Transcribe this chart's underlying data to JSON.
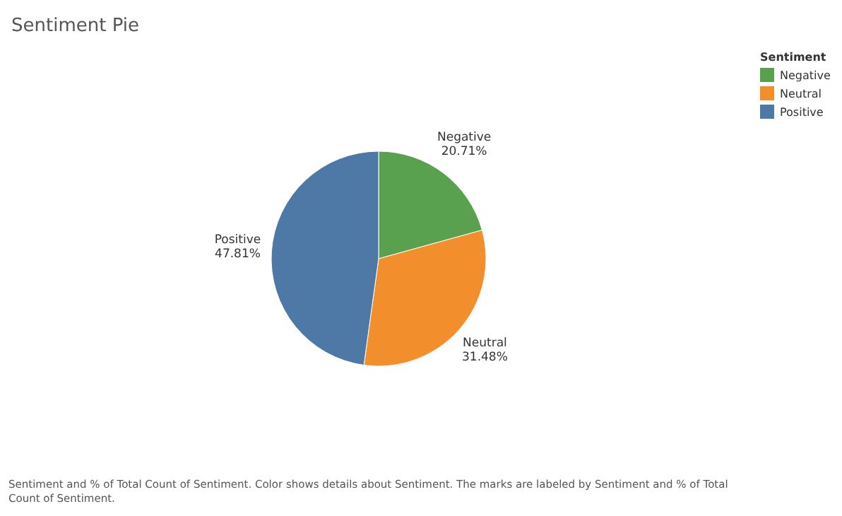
{
  "chart_data": {
    "type": "pie",
    "title": "Sentiment Pie",
    "legend_title": "Sentiment",
    "legend": "top right",
    "categories": [
      "Negative",
      "Neutral",
      "Positive"
    ],
    "values": [
      20.71,
      31.48,
      47.81
    ],
    "value_labels": [
      "20.71%",
      "31.48%",
      "47.81%"
    ],
    "colors": [
      "#59a14f",
      "#f28e2b",
      "#4e79a7"
    ],
    "annotations": [
      "Sentiment and % of Total Count of Sentiment.  Color shows details about Sentiment.  The marks are labeled by Sentiment and % of Total Count of Sentiment."
    ]
  }
}
